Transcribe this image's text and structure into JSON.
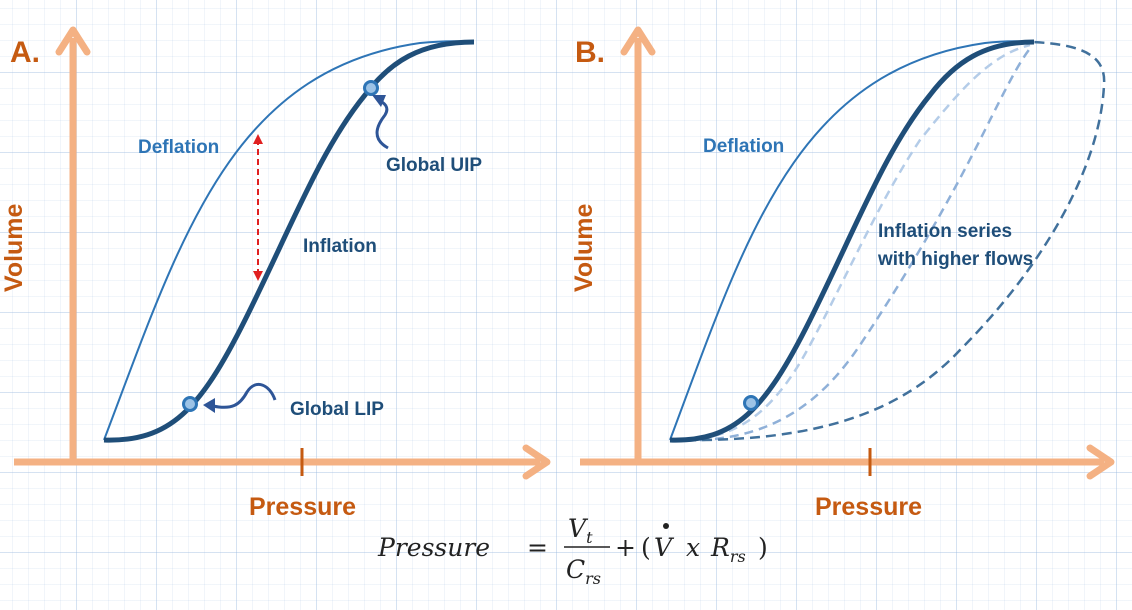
{
  "panel_a": {
    "label": "A.",
    "y_axis_title": "Volume",
    "x_axis_title": "Pressure",
    "deflation_label": "Deflation",
    "inflation_label": "Inflation",
    "uip_label": "Global UIP",
    "lip_label": "Global LIP"
  },
  "panel_b": {
    "label": "B.",
    "y_axis_title": "Volume",
    "x_axis_title": "Pressure",
    "deflation_label": "Deflation",
    "series_label_line1": "Inflation series",
    "series_label_line2": "with higher flows"
  },
  "equation": {
    "lhs": "Pressure",
    "equals": "=",
    "numerator_base": "V",
    "numerator_sub": "t",
    "denominator_base": "C",
    "denominator_sub": "rs",
    "plus": "+",
    "open_paren": "(",
    "flow_symbol": "V",
    "times": "x",
    "resistance_base": "R",
    "resistance_sub": "rs",
    "close_paren": ")"
  },
  "colors": {
    "axis": "#f4b183",
    "axis_title": "#c55a11",
    "curve_dark": "#1f4e79",
    "curve_light": "#2e75b6",
    "dashed_light": "#9dc3e6",
    "dashed_mid": "#6f9fd0",
    "arrow_red": "#e02020",
    "point_fill": "#9dc3e6"
  }
}
